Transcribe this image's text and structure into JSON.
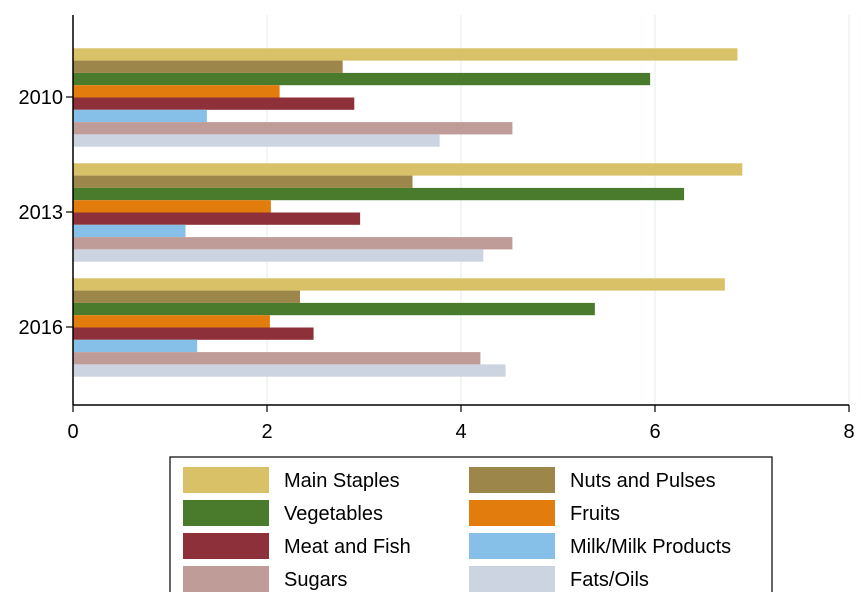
{
  "chart_data": {
    "type": "bar",
    "orientation": "horizontal",
    "categories": [
      "2010",
      "2013",
      "2016"
    ],
    "series": [
      {
        "name": "Main Staples",
        "color": "#d9c167",
        "values": [
          6.85,
          6.9,
          6.72
        ]
      },
      {
        "name": "Nuts and Pulses",
        "color": "#9c8649",
        "values": [
          2.78,
          3.5,
          2.34
        ]
      },
      {
        "name": "Vegetables",
        "color": "#4a7a2c",
        "values": [
          5.95,
          6.3,
          5.38
        ]
      },
      {
        "name": "Fruits",
        "color": "#e27c0c",
        "values": [
          2.13,
          2.04,
          2.03
        ]
      },
      {
        "name": "Meat and Fish",
        "color": "#8e3039",
        "values": [
          2.9,
          2.96,
          2.48
        ]
      },
      {
        "name": "Milk/Milk Products",
        "color": "#86c0e8",
        "values": [
          1.38,
          1.16,
          1.28
        ]
      },
      {
        "name": "Sugars",
        "color": "#bf9c97",
        "values": [
          4.53,
          4.53,
          4.2
        ]
      },
      {
        "name": "Fats/Oils",
        "color": "#ccd3e1",
        "values": [
          3.78,
          4.23,
          4.46
        ]
      }
    ],
    "xlim": [
      0,
      8
    ],
    "xticks": [
      "0",
      "2",
      "4",
      "6",
      "8"
    ],
    "grid": true,
    "legend_position": "bottom"
  }
}
